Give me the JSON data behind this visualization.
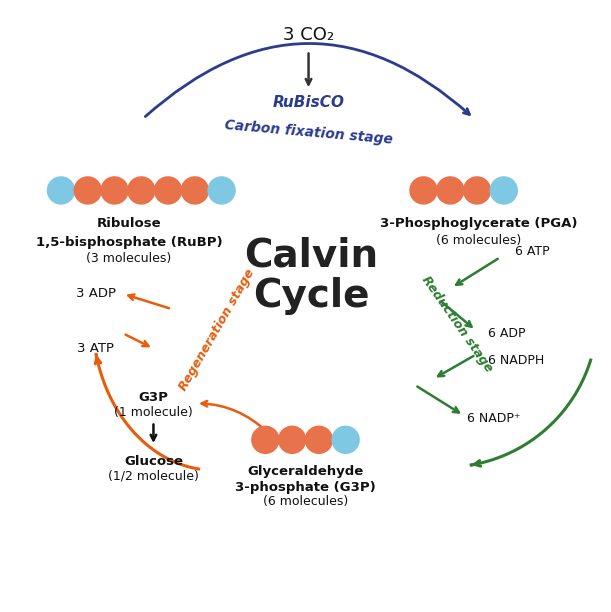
{
  "title": "Calvin\nCycle",
  "title_fontsize": 28,
  "title_color": "#222222",
  "bg_color": "#ffffff",
  "orange_color": "#E8734A",
  "blue_color": "#7EC8E3",
  "dark_blue_arrow": "#2B3C8F",
  "green_arrow": "#2E7D32",
  "orange_arrow": "#E85C0D",
  "black_arrow": "#111111",
  "rubisco_label": "RuBisCO",
  "carbon_fixation_label": "Carbon fixation stage",
  "regeneration_label": "Regeneration stage",
  "reduction_label": "Reduction stage",
  "co2_label": "3 CO₂",
  "rubp_label1": "Ribulose",
  "rubp_label2": "1,5-bisphosphate (RuBP)",
  "rubp_label3": "(3 molecules)",
  "pga_label1": "3-Phosphoglycerate (PGA)",
  "pga_label2": "(6 molecules)",
  "g3p_label1": "Glyceraldehyde",
  "g3p_label2": "3-phosphate (G3P)",
  "g3p_label3": "(6 molecules)",
  "g3p_side_label1": "G3P",
  "g3p_side_label2": "(1 molecule)",
  "glucose_label1": "Glucose",
  "glucose_label2": "(1/2 molecule)",
  "atp_label_6": "6 ATP",
  "adp_label_6": "6 ADP",
  "nadph_label": "6 NADPH",
  "nadp_label": "6 NADP⁺",
  "adp_label_3": "3 ADP",
  "atp_label_3": "3 ATP"
}
